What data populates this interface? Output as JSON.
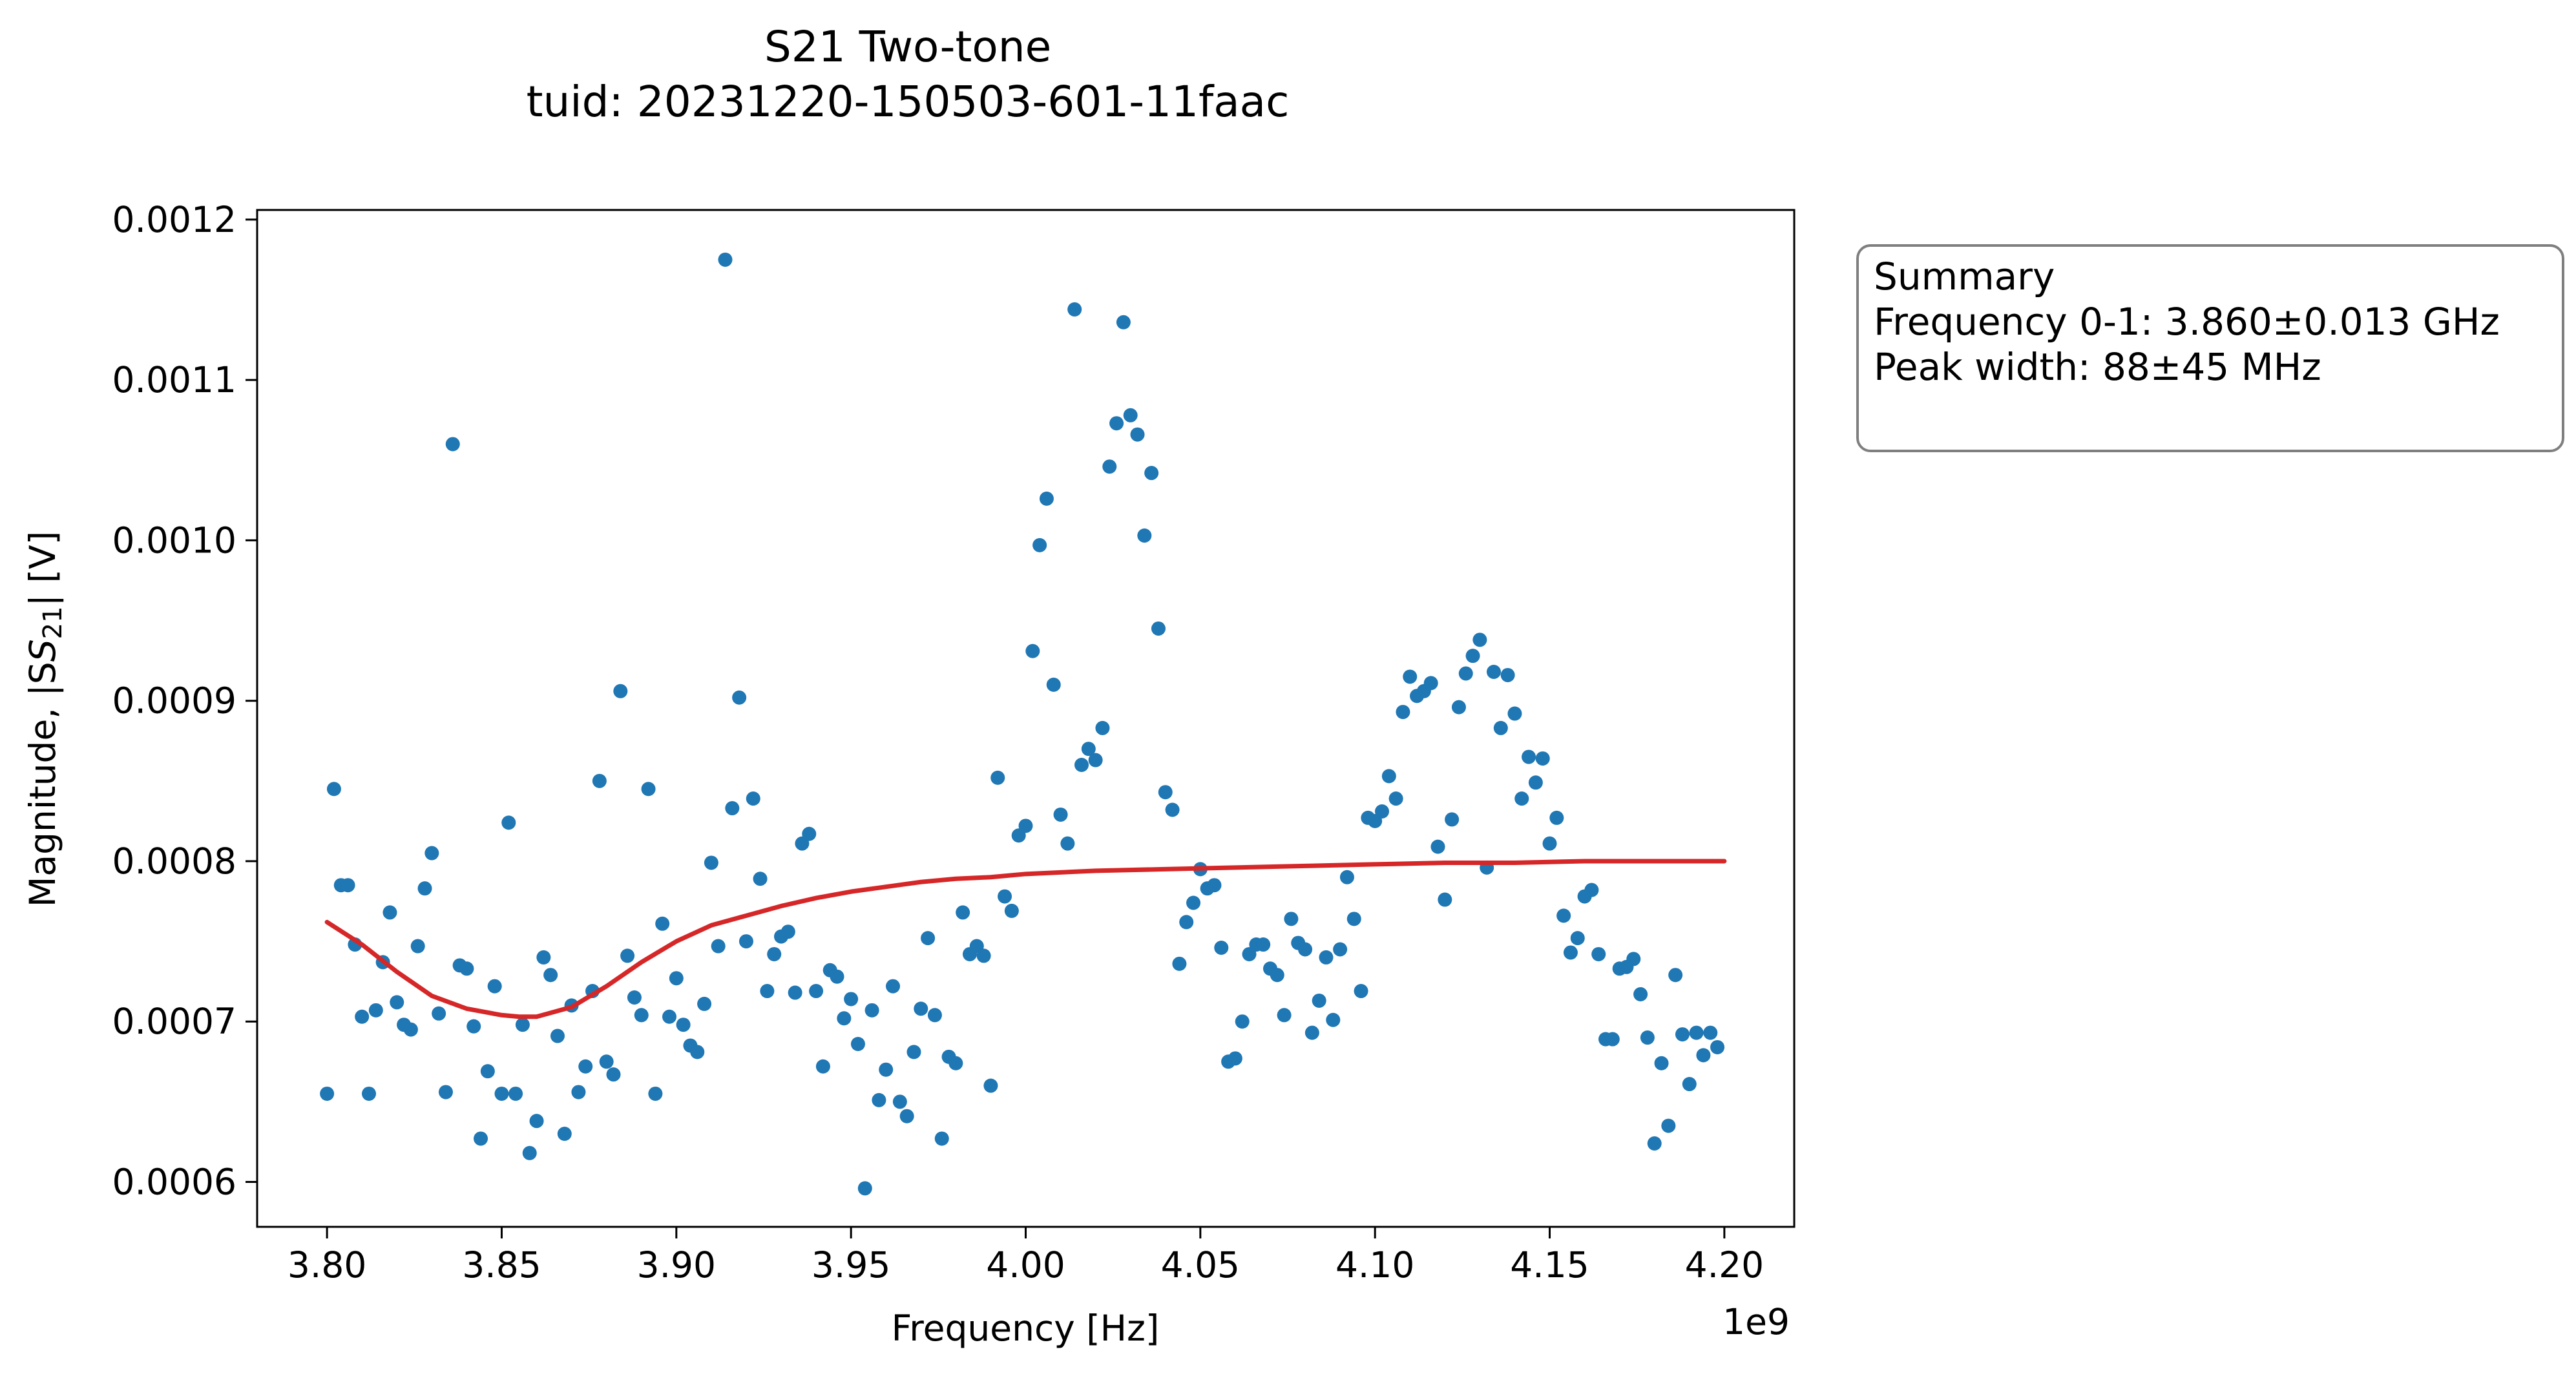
{
  "chart_data": {
    "type": "scatter",
    "title": "S21 Two-tone",
    "subtitle": "tuid: 20231220-150503-601-11faac",
    "xlabel": "Frequency [Hz]",
    "xlabel_exponent": "1e9",
    "ylabel_prefix": "Magnitude, |S",
    "ylabel_sub": "21",
    "ylabel_suffix": "| [V]",
    "xlim": [
      3.78,
      4.22
    ],
    "ylim": [
      0.000572,
      0.001206
    ],
    "x_scale_factor": 1000000000,
    "x_ticks": [
      3.8,
      3.85,
      3.9,
      3.95,
      4.0,
      4.05,
      4.1,
      4.15,
      4.2
    ],
    "x_tick_labels": [
      "3.80",
      "3.85",
      "3.90",
      "3.95",
      "4.00",
      "4.05",
      "4.10",
      "4.15",
      "4.20"
    ],
    "y_ticks": [
      0.0006,
      0.0007,
      0.0008,
      0.0009,
      0.001,
      0.0011,
      0.0012
    ],
    "y_tick_labels": [
      "0.0006",
      "0.0007",
      "0.0008",
      "0.0009",
      "0.0010",
      "0.0011",
      "0.0012"
    ],
    "grid": false,
    "scatter_color": "#1f77b4",
    "fit_color": "#d62728",
    "series": [
      {
        "kind": "scatter",
        "points": [
          [
            3.8,
            0.000655
          ],
          [
            3.802,
            0.000845
          ],
          [
            3.804,
            0.000785
          ],
          [
            3.806,
            0.000785
          ],
          [
            3.808,
            0.000748
          ],
          [
            3.81,
            0.000703
          ],
          [
            3.812,
            0.000655
          ],
          [
            3.814,
            0.000707
          ],
          [
            3.816,
            0.000737
          ],
          [
            3.818,
            0.000768
          ],
          [
            3.82,
            0.000712
          ],
          [
            3.822,
            0.000698
          ],
          [
            3.824,
            0.000695
          ],
          [
            3.826,
            0.000747
          ],
          [
            3.828,
            0.000783
          ],
          [
            3.83,
            0.000805
          ],
          [
            3.832,
            0.000705
          ],
          [
            3.834,
            0.000656
          ],
          [
            3.836,
            0.00106
          ],
          [
            3.838,
            0.000735
          ],
          [
            3.84,
            0.000733
          ],
          [
            3.842,
            0.000697
          ],
          [
            3.844,
            0.000627
          ],
          [
            3.846,
            0.000669
          ],
          [
            3.848,
            0.000722
          ],
          [
            3.85,
            0.000655
          ],
          [
            3.852,
            0.000824
          ],
          [
            3.854,
            0.000655
          ],
          [
            3.856,
            0.000698
          ],
          [
            3.858,
            0.000618
          ],
          [
            3.86,
            0.000638
          ],
          [
            3.862,
            0.00074
          ],
          [
            3.864,
            0.000729
          ],
          [
            3.866,
            0.000691
          ],
          [
            3.868,
            0.00063
          ],
          [
            3.87,
            0.00071
          ],
          [
            3.872,
            0.000656
          ],
          [
            3.874,
            0.000672
          ],
          [
            3.876,
            0.000719
          ],
          [
            3.878,
            0.00085
          ],
          [
            3.88,
            0.000675
          ],
          [
            3.882,
            0.000667
          ],
          [
            3.884,
            0.000906
          ],
          [
            3.886,
            0.000741
          ],
          [
            3.888,
            0.000715
          ],
          [
            3.89,
            0.000704
          ],
          [
            3.892,
            0.000845
          ],
          [
            3.894,
            0.000655
          ],
          [
            3.896,
            0.000761
          ],
          [
            3.898,
            0.000703
          ],
          [
            3.9,
            0.000727
          ],
          [
            3.902,
            0.000698
          ],
          [
            3.904,
            0.000685
          ],
          [
            3.906,
            0.000681
          ],
          [
            3.908,
            0.000711
          ],
          [
            3.91,
            0.000799
          ],
          [
            3.912,
            0.000747
          ],
          [
            3.914,
            0.001175
          ],
          [
            3.916,
            0.000833
          ],
          [
            3.918,
            0.000902
          ],
          [
            3.92,
            0.00075
          ],
          [
            3.922,
            0.000839
          ],
          [
            3.924,
            0.000789
          ],
          [
            3.926,
            0.000719
          ],
          [
            3.928,
            0.000742
          ],
          [
            3.93,
            0.000753
          ],
          [
            3.932,
            0.000756
          ],
          [
            3.934,
            0.000718
          ],
          [
            3.936,
            0.000811
          ],
          [
            3.938,
            0.000817
          ],
          [
            3.94,
            0.000719
          ],
          [
            3.942,
            0.000672
          ],
          [
            3.944,
            0.000732
          ],
          [
            3.946,
            0.000728
          ],
          [
            3.948,
            0.000702
          ],
          [
            3.95,
            0.000714
          ],
          [
            3.952,
            0.000686
          ],
          [
            3.954,
            0.000596
          ],
          [
            3.956,
            0.000707
          ],
          [
            3.958,
            0.000651
          ],
          [
            3.96,
            0.00067
          ],
          [
            3.962,
            0.000722
          ],
          [
            3.964,
            0.00065
          ],
          [
            3.966,
            0.000641
          ],
          [
            3.968,
            0.000681
          ],
          [
            3.97,
            0.000708
          ],
          [
            3.972,
            0.000752
          ],
          [
            3.974,
            0.000704
          ],
          [
            3.976,
            0.000627
          ],
          [
            3.978,
            0.000678
          ],
          [
            3.98,
            0.000674
          ],
          [
            3.982,
            0.000768
          ],
          [
            3.984,
            0.000742
          ],
          [
            3.986,
            0.000747
          ],
          [
            3.988,
            0.000741
          ],
          [
            3.99,
            0.00066
          ],
          [
            3.992,
            0.000852
          ],
          [
            3.994,
            0.000778
          ],
          [
            3.996,
            0.000769
          ],
          [
            3.998,
            0.000816
          ],
          [
            4.0,
            0.000822
          ],
          [
            4.002,
            0.000931
          ],
          [
            4.004,
            0.000997
          ],
          [
            4.006,
            0.001026
          ],
          [
            4.008,
            0.00091
          ],
          [
            4.01,
            0.000829
          ],
          [
            4.012,
            0.000811
          ],
          [
            4.014,
            0.001144
          ],
          [
            4.016,
            0.00086
          ],
          [
            4.018,
            0.00087
          ],
          [
            4.02,
            0.000863
          ],
          [
            4.022,
            0.000883
          ],
          [
            4.024,
            0.001046
          ],
          [
            4.026,
            0.001073
          ],
          [
            4.028,
            0.001136
          ],
          [
            4.03,
            0.001078
          ],
          [
            4.032,
            0.001066
          ],
          [
            4.034,
            0.001003
          ],
          [
            4.036,
            0.001042
          ],
          [
            4.038,
            0.000945
          ],
          [
            4.04,
            0.000843
          ],
          [
            4.042,
            0.000832
          ],
          [
            4.044,
            0.000736
          ],
          [
            4.046,
            0.000762
          ],
          [
            4.048,
            0.000774
          ],
          [
            4.05,
            0.000795
          ],
          [
            4.052,
            0.000783
          ],
          [
            4.054,
            0.000785
          ],
          [
            4.056,
            0.000746
          ],
          [
            4.058,
            0.000675
          ],
          [
            4.06,
            0.000677
          ],
          [
            4.062,
            0.0007
          ],
          [
            4.064,
            0.000742
          ],
          [
            4.066,
            0.000748
          ],
          [
            4.068,
            0.000748
          ],
          [
            4.07,
            0.000733
          ],
          [
            4.072,
            0.000729
          ],
          [
            4.074,
            0.000704
          ],
          [
            4.076,
            0.000764
          ],
          [
            4.078,
            0.000749
          ],
          [
            4.08,
            0.000745
          ],
          [
            4.082,
            0.000693
          ],
          [
            4.084,
            0.000713
          ],
          [
            4.086,
            0.00074
          ],
          [
            4.088,
            0.000701
          ],
          [
            4.09,
            0.000745
          ],
          [
            4.092,
            0.00079
          ],
          [
            4.094,
            0.000764
          ],
          [
            4.096,
            0.000719
          ],
          [
            4.098,
            0.000827
          ],
          [
            4.1,
            0.000825
          ],
          [
            4.102,
            0.000831
          ],
          [
            4.104,
            0.000853
          ],
          [
            4.106,
            0.000839
          ],
          [
            4.108,
            0.000893
          ],
          [
            4.11,
            0.000915
          ],
          [
            4.112,
            0.000903
          ],
          [
            4.114,
            0.000906
          ],
          [
            4.116,
            0.000911
          ],
          [
            4.118,
            0.000809
          ],
          [
            4.12,
            0.000776
          ],
          [
            4.122,
            0.000826
          ],
          [
            4.124,
            0.000896
          ],
          [
            4.126,
            0.000917
          ],
          [
            4.128,
            0.000928
          ],
          [
            4.13,
            0.000938
          ],
          [
            4.132,
            0.000796
          ],
          [
            4.134,
            0.000918
          ],
          [
            4.136,
            0.000883
          ],
          [
            4.138,
            0.000916
          ],
          [
            4.14,
            0.000892
          ],
          [
            4.142,
            0.000839
          ],
          [
            4.144,
            0.000865
          ],
          [
            4.146,
            0.000849
          ],
          [
            4.148,
            0.000864
          ],
          [
            4.15,
            0.000811
          ],
          [
            4.152,
            0.000827
          ],
          [
            4.154,
            0.000766
          ],
          [
            4.156,
            0.000743
          ],
          [
            4.158,
            0.000752
          ],
          [
            4.16,
            0.000778
          ],
          [
            4.162,
            0.000782
          ],
          [
            4.164,
            0.000742
          ],
          [
            4.166,
            0.000689
          ],
          [
            4.168,
            0.000689
          ],
          [
            4.17,
            0.000733
          ],
          [
            4.172,
            0.000734
          ],
          [
            4.174,
            0.000739
          ],
          [
            4.176,
            0.000717
          ],
          [
            4.178,
            0.00069
          ],
          [
            4.18,
            0.000624
          ],
          [
            4.182,
            0.000674
          ],
          [
            4.184,
            0.000635
          ],
          [
            4.186,
            0.000729
          ],
          [
            4.188,
            0.000692
          ],
          [
            4.19,
            0.000661
          ],
          [
            4.192,
            0.000693
          ],
          [
            4.194,
            0.000679
          ],
          [
            4.196,
            0.000693
          ],
          [
            4.198,
            0.000684
          ]
        ]
      },
      {
        "kind": "fit",
        "points": [
          [
            3.8,
            0.000762
          ],
          [
            3.81,
            0.000748
          ],
          [
            3.82,
            0.000731
          ],
          [
            3.83,
            0.000716
          ],
          [
            3.84,
            0.000708
          ],
          [
            3.85,
            0.000704
          ],
          [
            3.855,
            0.000703
          ],
          [
            3.86,
            0.000703
          ],
          [
            3.87,
            0.000709
          ],
          [
            3.88,
            0.000722
          ],
          [
            3.89,
            0.000737
          ],
          [
            3.9,
            0.00075
          ],
          [
            3.91,
            0.00076
          ],
          [
            3.92,
            0.000766
          ],
          [
            3.93,
            0.000772
          ],
          [
            3.94,
            0.000777
          ],
          [
            3.95,
            0.000781
          ],
          [
            3.96,
            0.000784
          ],
          [
            3.97,
            0.000787
          ],
          [
            3.98,
            0.000789
          ],
          [
            3.99,
            0.00079
          ],
          [
            4.0,
            0.000792
          ],
          [
            4.02,
            0.000794
          ],
          [
            4.04,
            0.000795
          ],
          [
            4.06,
            0.000796
          ],
          [
            4.08,
            0.000797
          ],
          [
            4.1,
            0.000798
          ],
          [
            4.12,
            0.000799
          ],
          [
            4.14,
            0.000799
          ],
          [
            4.16,
            0.0008
          ],
          [
            4.18,
            0.0008
          ],
          [
            4.2,
            0.0008
          ]
        ]
      }
    ],
    "summary_box": {
      "heading": "Summary",
      "lines": [
        "Frequency 0-1: 3.860±0.013 GHz",
        "Peak width: 88±45 MHz"
      ]
    }
  }
}
